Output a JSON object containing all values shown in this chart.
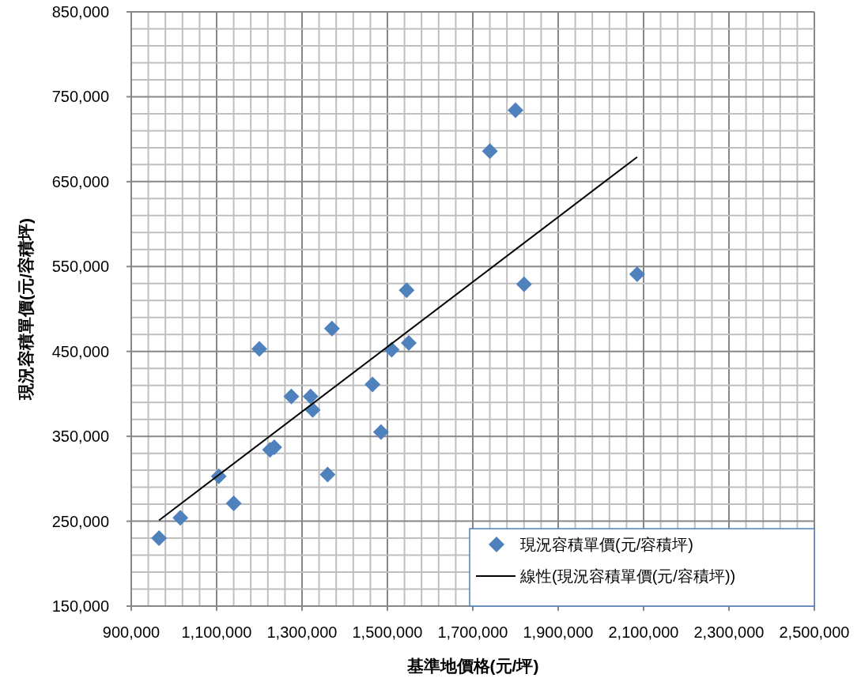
{
  "chart_data": {
    "type": "scatter",
    "xlabel": "基準地價格(元/坪)",
    "ylabel": "現況容積單價(元/容積坪)",
    "xlim": [
      900000,
      2500000
    ],
    "ylim": [
      150000,
      850000
    ],
    "xticks": [
      {
        "value": 900000,
        "label": "900,000"
      },
      {
        "value": 940000,
        "label": null
      },
      {
        "value": 980000,
        "label": null
      },
      {
        "value": 1020000,
        "label": null
      },
      {
        "value": 1060000,
        "label": null
      },
      {
        "value": 1100000,
        "label": "1,100,000"
      },
      {
        "value": 1140000,
        "label": null
      },
      {
        "value": 1180000,
        "label": null
      },
      {
        "value": 1220000,
        "label": null
      },
      {
        "value": 1260000,
        "label": null
      },
      {
        "value": 1300000,
        "label": "1,300,000"
      },
      {
        "value": 1340000,
        "label": null
      },
      {
        "value": 1380000,
        "label": null
      },
      {
        "value": 1420000,
        "label": null
      },
      {
        "value": 1460000,
        "label": null
      },
      {
        "value": 1500000,
        "label": "1,500,000"
      },
      {
        "value": 1540000,
        "label": null
      },
      {
        "value": 1580000,
        "label": null
      },
      {
        "value": 1620000,
        "label": null
      },
      {
        "value": 1660000,
        "label": null
      },
      {
        "value": 1700000,
        "label": "1,700,000"
      },
      {
        "value": 1740000,
        "label": null
      },
      {
        "value": 1780000,
        "label": null
      },
      {
        "value": 1820000,
        "label": null
      },
      {
        "value": 1860000,
        "label": null
      },
      {
        "value": 1900000,
        "label": "1,900,000"
      },
      {
        "value": 1940000,
        "label": null
      },
      {
        "value": 1980000,
        "label": null
      },
      {
        "value": 2020000,
        "label": null
      },
      {
        "value": 2060000,
        "label": null
      },
      {
        "value": 2100000,
        "label": "2,100,000"
      },
      {
        "value": 2140000,
        "label": null
      },
      {
        "value": 2180000,
        "label": null
      },
      {
        "value": 2220000,
        "label": null
      },
      {
        "value": 2260000,
        "label": null
      },
      {
        "value": 2300000,
        "label": "2,300,000"
      },
      {
        "value": 2340000,
        "label": null
      },
      {
        "value": 2380000,
        "label": null
      },
      {
        "value": 2420000,
        "label": null
      },
      {
        "value": 2460000,
        "label": null
      },
      {
        "value": 2500000,
        "label": "2,500,000"
      }
    ],
    "yticks": [
      {
        "value": 150000,
        "label": "150,000"
      },
      {
        "value": 170000,
        "label": null
      },
      {
        "value": 190000,
        "label": null
      },
      {
        "value": 210000,
        "label": null
      },
      {
        "value": 230000,
        "label": null
      },
      {
        "value": 250000,
        "label": "250,000"
      },
      {
        "value": 270000,
        "label": null
      },
      {
        "value": 290000,
        "label": null
      },
      {
        "value": 310000,
        "label": null
      },
      {
        "value": 330000,
        "label": null
      },
      {
        "value": 350000,
        "label": "350,000"
      },
      {
        "value": 370000,
        "label": null
      },
      {
        "value": 390000,
        "label": null
      },
      {
        "value": 410000,
        "label": null
      },
      {
        "value": 430000,
        "label": null
      },
      {
        "value": 450000,
        "label": "450,000"
      },
      {
        "value": 470000,
        "label": null
      },
      {
        "value": 490000,
        "label": null
      },
      {
        "value": 510000,
        "label": null
      },
      {
        "value": 530000,
        "label": null
      },
      {
        "value": 550000,
        "label": "550,000"
      },
      {
        "value": 570000,
        "label": null
      },
      {
        "value": 590000,
        "label": null
      },
      {
        "value": 610000,
        "label": null
      },
      {
        "value": 630000,
        "label": null
      },
      {
        "value": 650000,
        "label": "650,000"
      },
      {
        "value": 670000,
        "label": null
      },
      {
        "value": 690000,
        "label": null
      },
      {
        "value": 710000,
        "label": null
      },
      {
        "value": 730000,
        "label": null
      },
      {
        "value": 750000,
        "label": "750,000"
      },
      {
        "value": 770000,
        "label": null
      },
      {
        "value": 790000,
        "label": null
      },
      {
        "value": 810000,
        "label": null
      },
      {
        "value": 830000,
        "label": null
      },
      {
        "value": 850000,
        "label": "850,000"
      }
    ],
    "grid": true,
    "legend": "bottom right",
    "series": [
      {
        "name": "現況容積單價(元/容積坪)",
        "marker": "diamond",
        "color": "#4f81bd",
        "x": [
          965000,
          1015000,
          1105000,
          1140000,
          1225000,
          1235000,
          1200000,
          1275000,
          1320000,
          1325000,
          1360000,
          1370000,
          1465000,
          1485000,
          1510000,
          1545000,
          1550000,
          1740000,
          1800000,
          1820000,
          2085000
        ],
        "values": [
          230000,
          254000,
          303000,
          271000,
          334000,
          337000,
          453000,
          397000,
          397000,
          381000,
          305000,
          477000,
          411000,
          355000,
          452000,
          522000,
          460000,
          686000,
          734000,
          529000,
          541000
        ]
      },
      {
        "name": "線性(現況容積單價(元/容積坪))",
        "type": "line",
        "color": "#000000",
        "x": [
          965000,
          2085000
        ],
        "values": [
          251000,
          679000
        ]
      }
    ]
  }
}
